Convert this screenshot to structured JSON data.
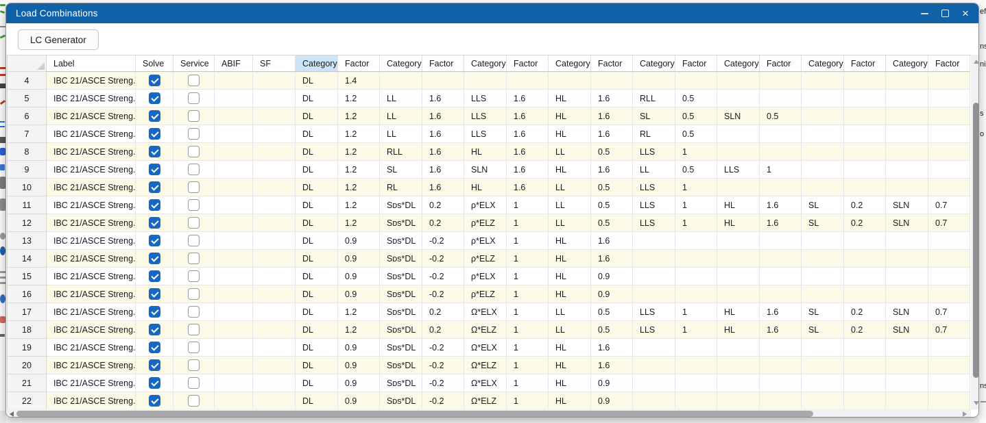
{
  "window": {
    "title": "Load Combinations",
    "controls": [
      {
        "name": "minimize",
        "icon": "minimize-icon"
      },
      {
        "name": "maximize",
        "icon": "maximize-icon"
      },
      {
        "name": "close",
        "icon": "close-icon",
        "glyph": "×"
      }
    ]
  },
  "toolbar": {
    "lc_generator_label": "LC Generator"
  },
  "table": {
    "main_headers": [
      "Label",
      "Solve",
      "Service",
      "ABIF",
      "SF"
    ],
    "pair_headers": {
      "category": "Category",
      "factor": "Factor"
    },
    "pair_count": 8,
    "selected_header": "Category",
    "rows": [
      {
        "num": "4",
        "label": "IBC 21/ASCE Streng...",
        "solve": true,
        "service": false,
        "abif": "",
        "sf": "",
        "pairs": [
          [
            "DL",
            "1.4"
          ]
        ]
      },
      {
        "num": "5",
        "label": "IBC 21/ASCE Streng...",
        "solve": true,
        "service": false,
        "abif": "",
        "sf": "",
        "pairs": [
          [
            "DL",
            "1.2"
          ],
          [
            "LL",
            "1.6"
          ],
          [
            "LLS",
            "1.6"
          ],
          [
            "HL",
            "1.6"
          ],
          [
            "RLL",
            "0.5"
          ]
        ]
      },
      {
        "num": "6",
        "label": "IBC 21/ASCE Streng...",
        "solve": true,
        "service": false,
        "abif": "",
        "sf": "",
        "pairs": [
          [
            "DL",
            "1.2"
          ],
          [
            "LL",
            "1.6"
          ],
          [
            "LLS",
            "1.6"
          ],
          [
            "HL",
            "1.6"
          ],
          [
            "SL",
            "0.5"
          ],
          [
            "SLN",
            "0.5"
          ]
        ]
      },
      {
        "num": "7",
        "label": "IBC 21/ASCE Streng...",
        "solve": true,
        "service": false,
        "abif": "",
        "sf": "",
        "pairs": [
          [
            "DL",
            "1.2"
          ],
          [
            "LL",
            "1.6"
          ],
          [
            "LLS",
            "1.6"
          ],
          [
            "HL",
            "1.6"
          ],
          [
            "RL",
            "0.5"
          ]
        ]
      },
      {
        "num": "8",
        "label": "IBC 21/ASCE Streng...",
        "solve": true,
        "service": false,
        "abif": "",
        "sf": "",
        "pairs": [
          [
            "DL",
            "1.2"
          ],
          [
            "RLL",
            "1.6"
          ],
          [
            "HL",
            "1.6"
          ],
          [
            "LL",
            "0.5"
          ],
          [
            "LLS",
            "1"
          ]
        ]
      },
      {
        "num": "9",
        "label": "IBC 21/ASCE Streng...",
        "solve": true,
        "service": false,
        "abif": "",
        "sf": "",
        "pairs": [
          [
            "DL",
            "1.2"
          ],
          [
            "SL",
            "1.6"
          ],
          [
            "SLN",
            "1.6"
          ],
          [
            "HL",
            "1.6"
          ],
          [
            "LL",
            "0.5"
          ],
          [
            "LLS",
            "1"
          ]
        ]
      },
      {
        "num": "10",
        "label": "IBC 21/ASCE Streng...",
        "solve": true,
        "service": false,
        "abif": "",
        "sf": "",
        "pairs": [
          [
            "DL",
            "1.2"
          ],
          [
            "RL",
            "1.6"
          ],
          [
            "HL",
            "1.6"
          ],
          [
            "LL",
            "0.5"
          ],
          [
            "LLS",
            "1"
          ]
        ]
      },
      {
        "num": "11",
        "label": "IBC 21/ASCE Streng...",
        "solve": true,
        "service": false,
        "abif": "",
        "sf": "",
        "pairs": [
          [
            "DL",
            "1.2"
          ],
          [
            "Sᴅs*DL",
            "0.2"
          ],
          [
            "ρ*ELX",
            "1"
          ],
          [
            "LL",
            "0.5"
          ],
          [
            "LLS",
            "1"
          ],
          [
            "HL",
            "1.6"
          ],
          [
            "SL",
            "0.2"
          ],
          [
            "SLN",
            "0.7"
          ]
        ]
      },
      {
        "num": "12",
        "label": "IBC 21/ASCE Streng...",
        "solve": true,
        "service": false,
        "abif": "",
        "sf": "",
        "pairs": [
          [
            "DL",
            "1.2"
          ],
          [
            "Sᴅs*DL",
            "0.2"
          ],
          [
            "ρ*ELZ",
            "1"
          ],
          [
            "LL",
            "0.5"
          ],
          [
            "LLS",
            "1"
          ],
          [
            "HL",
            "1.6"
          ],
          [
            "SL",
            "0.2"
          ],
          [
            "SLN",
            "0.7"
          ]
        ]
      },
      {
        "num": "13",
        "label": "IBC 21/ASCE Streng...",
        "solve": true,
        "service": false,
        "abif": "",
        "sf": "",
        "pairs": [
          [
            "DL",
            "0.9"
          ],
          [
            "Sᴅs*DL",
            "-0.2"
          ],
          [
            "ρ*ELX",
            "1"
          ],
          [
            "HL",
            "1.6"
          ]
        ]
      },
      {
        "num": "14",
        "label": "IBC 21/ASCE Streng...",
        "solve": true,
        "service": false,
        "abif": "",
        "sf": "",
        "pairs": [
          [
            "DL",
            "0.9"
          ],
          [
            "Sᴅs*DL",
            "-0.2"
          ],
          [
            "ρ*ELZ",
            "1"
          ],
          [
            "HL",
            "1.6"
          ]
        ]
      },
      {
        "num": "15",
        "label": "IBC 21/ASCE Streng...",
        "solve": true,
        "service": false,
        "abif": "",
        "sf": "",
        "pairs": [
          [
            "DL",
            "0.9"
          ],
          [
            "Sᴅs*DL",
            "-0.2"
          ],
          [
            "ρ*ELX",
            "1"
          ],
          [
            "HL",
            "0.9"
          ]
        ]
      },
      {
        "num": "16",
        "label": "IBC 21/ASCE Streng...",
        "solve": true,
        "service": false,
        "abif": "",
        "sf": "",
        "pairs": [
          [
            "DL",
            "0.9"
          ],
          [
            "Sᴅs*DL",
            "-0.2"
          ],
          [
            "ρ*ELZ",
            "1"
          ],
          [
            "HL",
            "0.9"
          ]
        ]
      },
      {
        "num": "17",
        "label": "IBC 21/ASCE Streng...",
        "solve": true,
        "service": false,
        "abif": "",
        "sf": "",
        "pairs": [
          [
            "DL",
            "1.2"
          ],
          [
            "Sᴅs*DL",
            "0.2"
          ],
          [
            "Ω*ELX",
            "1"
          ],
          [
            "LL",
            "0.5"
          ],
          [
            "LLS",
            "1"
          ],
          [
            "HL",
            "1.6"
          ],
          [
            "SL",
            "0.2"
          ],
          [
            "SLN",
            "0.7"
          ]
        ]
      },
      {
        "num": "18",
        "label": "IBC 21/ASCE Streng...",
        "solve": true,
        "service": false,
        "abif": "",
        "sf": "",
        "pairs": [
          [
            "DL",
            "1.2"
          ],
          [
            "Sᴅs*DL",
            "0.2"
          ],
          [
            "Ω*ELZ",
            "1"
          ],
          [
            "LL",
            "0.5"
          ],
          [
            "LLS",
            "1"
          ],
          [
            "HL",
            "1.6"
          ],
          [
            "SL",
            "0.2"
          ],
          [
            "SLN",
            "0.7"
          ]
        ]
      },
      {
        "num": "19",
        "label": "IBC 21/ASCE Streng...",
        "solve": true,
        "service": false,
        "abif": "",
        "sf": "",
        "pairs": [
          [
            "DL",
            "0.9"
          ],
          [
            "Sᴅs*DL",
            "-0.2"
          ],
          [
            "Ω*ELX",
            "1"
          ],
          [
            "HL",
            "1.6"
          ]
        ]
      },
      {
        "num": "20",
        "label": "IBC 21/ASCE Streng...",
        "solve": true,
        "service": false,
        "abif": "",
        "sf": "",
        "pairs": [
          [
            "DL",
            "0.9"
          ],
          [
            "Sᴅs*DL",
            "-0.2"
          ],
          [
            "Ω*ELZ",
            "1"
          ],
          [
            "HL",
            "1.6"
          ]
        ]
      },
      {
        "num": "21",
        "label": "IBC 21/ASCE Streng...",
        "solve": true,
        "service": false,
        "abif": "",
        "sf": "",
        "pairs": [
          [
            "DL",
            "0.9"
          ],
          [
            "Sᴅs*DL",
            "-0.2"
          ],
          [
            "Ω*ELX",
            "1"
          ],
          [
            "HL",
            "0.9"
          ]
        ]
      },
      {
        "num": "22",
        "label": "IBC 21/ASCE Streng...",
        "solve": true,
        "service": false,
        "abif": "",
        "sf": "",
        "pairs": [
          [
            "DL",
            "0.9"
          ],
          [
            "Sᴅs*DL",
            "-0.2"
          ],
          [
            "Ω*ELZ",
            "1"
          ],
          [
            "HL",
            "0.9"
          ]
        ]
      }
    ]
  },
  "background": {
    "right_edge_text_fragments": [
      "ef",
      "ns",
      "ni",
      "s",
      "o",
      "ns"
    ]
  },
  "colors": {
    "titlebar_blue": "#1161a9",
    "checkbox_blue": "#1468c6",
    "row_cream": "#fdf9e7",
    "selected_header_blue": "#cce4f7",
    "grid_line": "#e6e6e6",
    "row_number_bg": "#f4f4f4",
    "scrollbar_thumb": "#909090"
  }
}
